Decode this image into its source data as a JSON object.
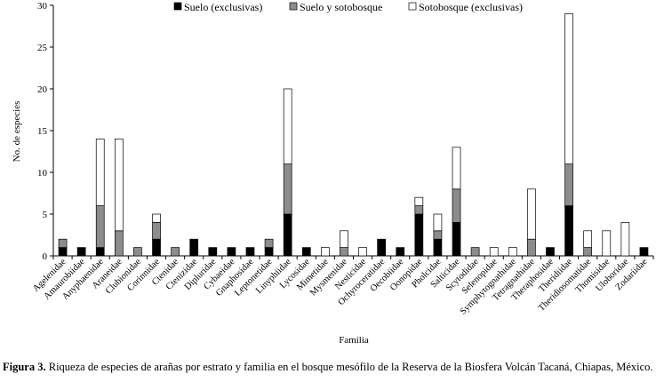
{
  "caption": {
    "label": "Figura 3.",
    "text": " Riqueza de especies de arañas por estrato y familia en el bosque mesófilo de la Reserva de la Biosfera Volcán Tacaná, Chiapas, México."
  },
  "chart_data": {
    "type": "bar",
    "stacked": true,
    "xlabel": "Familia",
    "ylabel": "No. de especies",
    "ylim": [
      0,
      30
    ],
    "yticks": [
      0,
      5,
      10,
      15,
      20,
      25,
      30
    ],
    "legend_position": "top-right",
    "categories": [
      "Agelenidae",
      "Amaurobiidae",
      "Anyphaenidae",
      "Araneidae",
      "Clubionidae",
      "Corinnidae",
      "Ctenidae",
      "Ctenizidae",
      "Dipluridae",
      "Cybaeidae",
      "Gnaphosidae",
      "Leptonetidae",
      "Linyphiidae",
      "Lycosidae",
      "Mimetidae",
      "Mysmenidae",
      "Nesticidae",
      "Ochyroceratidae",
      "Oecobiidae",
      "Oonopidae",
      "Pholcidae",
      "Salticidae",
      "Scytodidae",
      "Selenopidae",
      "Symphytognathidae",
      "Tetragnathidae",
      "Theraphosidae",
      "Theridiidae",
      "Theridiosomatidae",
      "Thomisidae",
      "Uloboridae",
      "Zodariidae"
    ],
    "series": [
      {
        "name": "Suelo (exclusivas)",
        "color": "#000000",
        "values": [
          1,
          1,
          1,
          0,
          0,
          2,
          0,
          2,
          1,
          1,
          1,
          1,
          5,
          1,
          0,
          0,
          0,
          2,
          1,
          5,
          2,
          4,
          0,
          0,
          0,
          0,
          1,
          6,
          0,
          0,
          0,
          1
        ]
      },
      {
        "name": "Suelo y sotobosque",
        "color": "#8c8c8c",
        "values": [
          1,
          0,
          5,
          3,
          1,
          2,
          1,
          0,
          0,
          0,
          0,
          1,
          6,
          0,
          0,
          1,
          0,
          0,
          0,
          1,
          1,
          4,
          1,
          0,
          0,
          2,
          0,
          5,
          1,
          0,
          0,
          0
        ]
      },
      {
        "name": "Sotobosque (exclusivas)",
        "color": "#ffffff",
        "values": [
          0,
          0,
          8,
          11,
          0,
          1,
          0,
          0,
          0,
          0,
          0,
          0,
          9,
          0,
          1,
          2,
          1,
          0,
          0,
          1,
          2,
          5,
          0,
          1,
          1,
          6,
          0,
          18,
          2,
          3,
          4,
          0
        ]
      }
    ]
  }
}
